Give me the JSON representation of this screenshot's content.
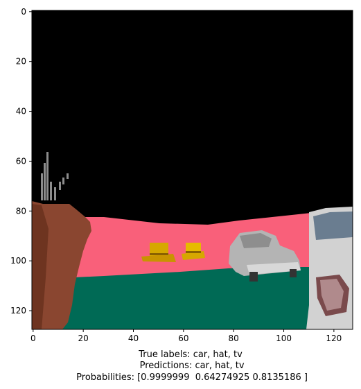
{
  "chart_data": {
    "type": "image",
    "title": "",
    "xlabel": "",
    "ylabel": "",
    "xlim": [
      0,
      127
    ],
    "ylim": [
      127,
      0
    ],
    "x_ticks": [
      0,
      20,
      40,
      60,
      80,
      100,
      120
    ],
    "y_ticks": [
      0,
      20,
      40,
      60,
      80,
      100,
      120
    ],
    "caption": [
      "True labels: car, hat, tv",
      " Predictions: car, hat, tv",
      " Probabilities: [0.9999999  0.64274925 0.8135186 ]"
    ],
    "colors": {
      "sky": "#000000",
      "wall": "#f9607a",
      "floor": "#006a55",
      "vase": "#8a4630",
      "hat": "#d6a800",
      "car": "#b4b4b4",
      "tv": "#d2d2d2",
      "tv_screen": "#6a7d90"
    }
  }
}
